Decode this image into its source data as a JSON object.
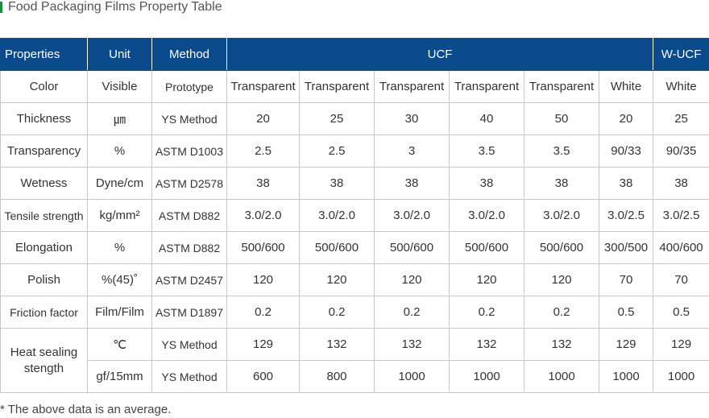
{
  "title": "Food Packaging Films Property Table",
  "header": {
    "properties": "Properties",
    "unit": "Unit",
    "method": "Method",
    "group_ucf": "UCF",
    "group_wucf": "W-UCF"
  },
  "rows": [
    {
      "property": "Color",
      "unit": "Visible",
      "method": "Prototype",
      "values": [
        "Transparent",
        "Transparent",
        "Transparent",
        "Transparent",
        "Transparent",
        "White",
        "White"
      ]
    },
    {
      "property": "Thickness",
      "unit": "㎛",
      "method": "YS Method",
      "values": [
        "20",
        "25",
        "30",
        "40",
        "50",
        "20",
        "25"
      ]
    },
    {
      "property": "Transparency",
      "unit": "%",
      "method": "ASTM D1003",
      "values": [
        "2.5",
        "2.5",
        "3",
        "3.5",
        "3.5",
        "90/33",
        "90/35"
      ]
    },
    {
      "property": "Wetness",
      "unit": "Dyne/cm",
      "method": "ASTM D2578",
      "values": [
        "38",
        "38",
        "38",
        "38",
        "38",
        "38",
        "38"
      ]
    },
    {
      "property": "Tensile strength",
      "unit": "kg/mm²",
      "method": "ASTM D882",
      "values": [
        "3.0/2.0",
        "3.0/2.0",
        "3.0/2.0",
        "3.0/2.0",
        "3.0/2.0",
        "3.0/2.5",
        "3.0/2.5"
      ]
    },
    {
      "property": "Elongation",
      "unit": "%",
      "method": "ASTM D882",
      "values": [
        "500/600",
        "500/600",
        "500/600",
        "500/600",
        "500/600",
        "300/500",
        "400/600"
      ]
    },
    {
      "property": "Polish",
      "unit": "%(45)˚",
      "method": "ASTM D2457",
      "values": [
        "120",
        "120",
        "120",
        "120",
        "120",
        "70",
        "70"
      ]
    },
    {
      "property": "Friction factor",
      "unit": "Film/Film",
      "method": "ASTM D1897",
      "values": [
        "0.2",
        "0.2",
        "0.2",
        "0.2",
        "0.2",
        "0.5",
        "0.5"
      ]
    }
  ],
  "heat_sealing": {
    "property": "Heat sealing stength",
    "sub": [
      {
        "unit": "℃",
        "method": "YS Method",
        "values": [
          "129",
          "132",
          "132",
          "132",
          "132",
          "129",
          "129"
        ]
      },
      {
        "unit": "gf/15mm",
        "method": "YS Method",
        "values": [
          "600",
          "800",
          "1000",
          "1000",
          "1000",
          "1000",
          "1000"
        ]
      }
    ]
  },
  "note": "* The above data is an average."
}
